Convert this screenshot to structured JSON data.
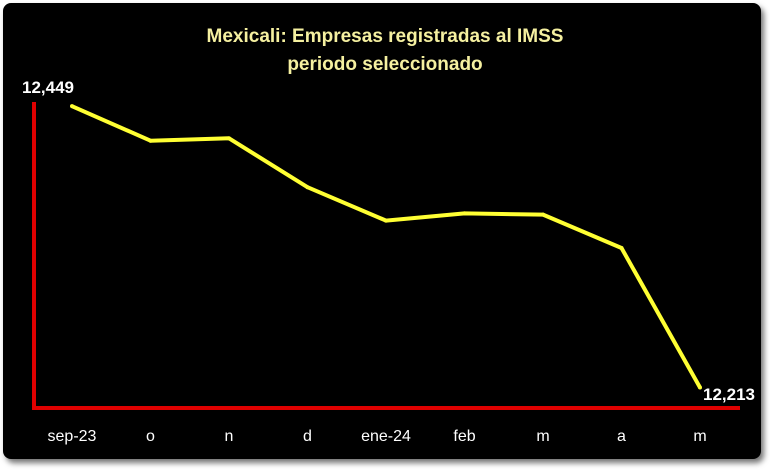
{
  "chart_data": {
    "type": "line",
    "title": "Mexicali: Empresas registradas al IMSS",
    "subtitle": "periodo seleccionado",
    "categories": [
      "sep-23",
      "o",
      "n",
      "d",
      "ene-24",
      "feb",
      "m",
      "a",
      "m"
    ],
    "series": [
      {
        "values": [
          12449,
          12420,
          12422,
          12381,
          12353,
          12359,
          12358,
          12330,
          12213
        ]
      }
    ],
    "data_labels": [
      "12,449",
      "12,213"
    ],
    "ylim": [
      12205,
      12455
    ],
    "grid": false,
    "legend": "none",
    "colors": {
      "background": "#000000",
      "line": "#ffff33",
      "axes": "#e00000",
      "title": "#f5f0a0",
      "text": "#ffffff"
    }
  }
}
